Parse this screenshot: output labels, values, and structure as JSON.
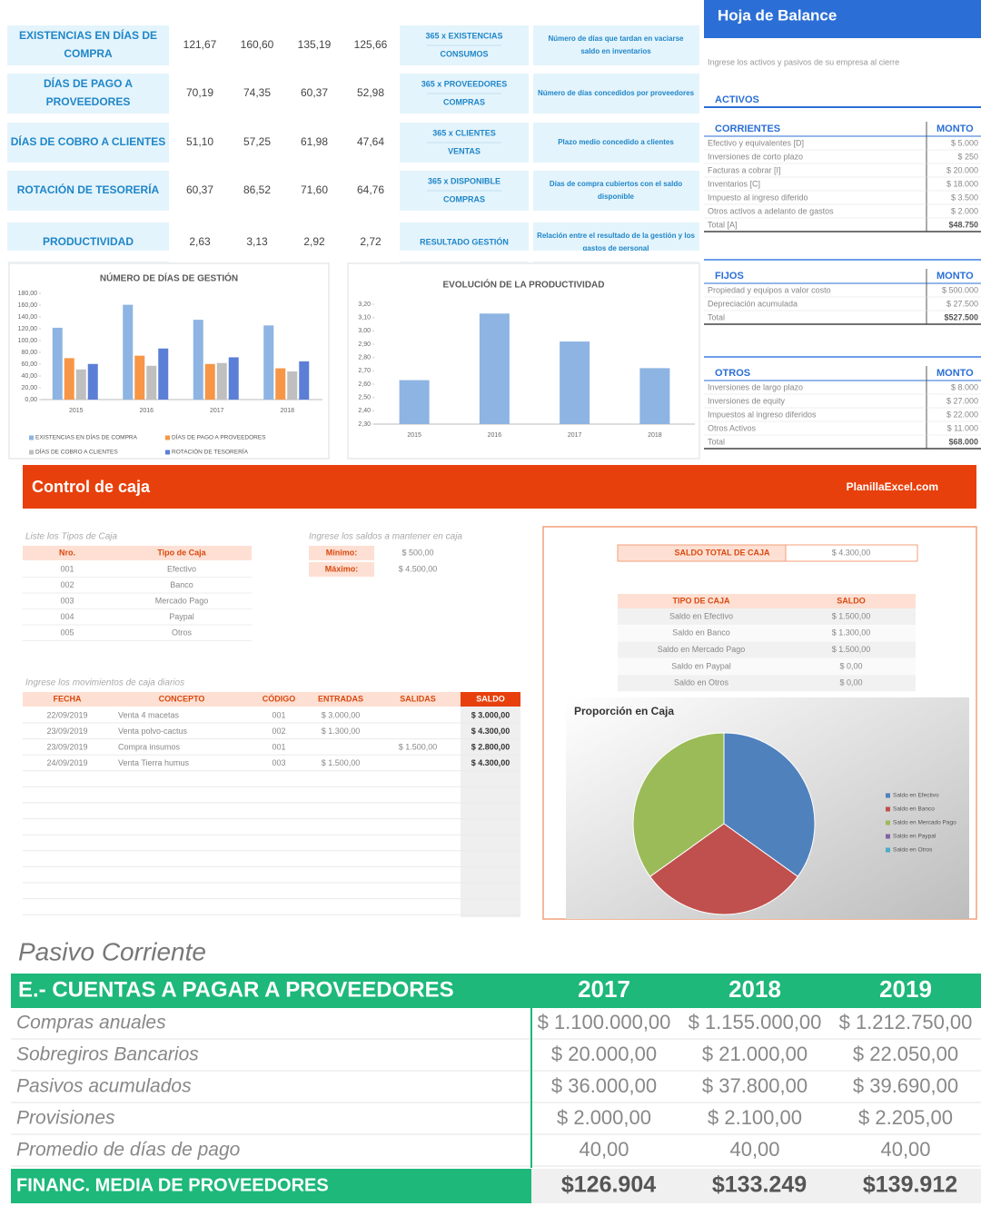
{
  "indicators": {
    "rows": [
      {
        "name": [
          "EXISTENCIAS EN DÍAS DE",
          "COMPRA"
        ],
        "values": [
          "121,67",
          "160,60",
          "135,19",
          "125,66"
        ],
        "formula": [
          "365 x EXISTENCIAS",
          "CONSUMOS"
        ],
        "meaning": [
          "Número de días que tardan en vaciarse",
          "saldo en inventarios"
        ]
      },
      {
        "name": [
          "DÍAS DE PAGO A",
          "PROVEEDORES"
        ],
        "values": [
          "70,19",
          "74,35",
          "60,37",
          "52,98"
        ],
        "formula": [
          "365 x PROVEEDORES",
          "COMPRAS"
        ],
        "meaning": [
          "Número de días concedidos por proveedores"
        ]
      },
      {
        "name": [
          "DÍAS DE COBRO A CLIENTES"
        ],
        "values": [
          "51,10",
          "57,25",
          "61,98",
          "47,64"
        ],
        "formula": [
          "365 x CLIENTES",
          "VENTAS"
        ],
        "meaning": [
          "Plazo medio concedido a clientes"
        ]
      },
      {
        "name": [
          "ROTACIÓN DE TESORERÍA"
        ],
        "values": [
          "60,37",
          "86,52",
          "71,60",
          "64,76"
        ],
        "formula": [
          "365 x DISPONIBLE",
          "COMPRAS"
        ],
        "meaning": [
          "Días de compra cubiertos con el saldo",
          "disponible"
        ]
      },
      {
        "name": [
          "PRODUCTIVIDAD"
        ],
        "values": [
          "2,63",
          "3,13",
          "2,92",
          "2,72"
        ],
        "formula": [
          "RESULTADO GESTIÓN"
        ],
        "meaning": [
          "Relación entre el resultado de la gestión y los",
          "gastos de personal"
        ]
      }
    ]
  },
  "chart_data": [
    {
      "type": "bar",
      "title": "NÚMERO DE DÍAS DE GESTIÓN",
      "categories": [
        "2015",
        "2016",
        "2017",
        "2018"
      ],
      "series": [
        {
          "name": "EXISTENCIAS EN DÍAS DE COMPRA",
          "color": "#8db4e2",
          "values": [
            121.67,
            160.6,
            135.19,
            125.66
          ]
        },
        {
          "name": "DÍAS DE PAGO A PROVEEDORES",
          "color": "#f79646",
          "values": [
            70.19,
            74.35,
            60.37,
            52.98
          ]
        },
        {
          "name": "DÍAS DE COBRO A CLIENTES",
          "color": "#bfbfbf",
          "values": [
            51.1,
            57.25,
            61.98,
            47.64
          ]
        },
        {
          "name": "ROTACIÓN DE TESORERÍA",
          "color": "#5b7fd6",
          "values": [
            60.37,
            86.52,
            71.6,
            64.76
          ]
        }
      ],
      "ylim": [
        0,
        180
      ],
      "yticks": [
        {
          "value": 0,
          "label": "0,00"
        },
        {
          "value": 20,
          "label": "20,00"
        },
        {
          "value": 40,
          "label": "40,00"
        },
        {
          "value": 60,
          "label": "60,00"
        },
        {
          "value": 80,
          "label": "80,00"
        },
        {
          "value": 100,
          "label": "100,00"
        },
        {
          "value": 120,
          "label": "120,00"
        },
        {
          "value": 140,
          "label": "140,00"
        },
        {
          "value": 160,
          "label": "160,00"
        },
        {
          "value": 180,
          "label": "180,00"
        }
      ]
    },
    {
      "type": "bar",
      "title": "EVOLUCIÓN DE LA PRODUCTIVIDAD",
      "categories": [
        "2015",
        "2016",
        "2017",
        "2018"
      ],
      "values": [
        2.63,
        3.13,
        2.92,
        2.72
      ],
      "color": "#8db4e2",
      "ylim": [
        2.3,
        3.2
      ],
      "yticks": [
        {
          "value": 2.3,
          "label": "2,30"
        },
        {
          "value": 2.4,
          "label": "2,40"
        },
        {
          "value": 2.5,
          "label": "2,50"
        },
        {
          "value": 2.6,
          "label": "2,60"
        },
        {
          "value": 2.7,
          "label": "2,70"
        },
        {
          "value": 2.8,
          "label": "2,80"
        },
        {
          "value": 2.9,
          "label": "2,90"
        },
        {
          "value": 3.0,
          "label": "3,00"
        },
        {
          "value": 3.1,
          "label": "3,10"
        },
        {
          "value": 3.2,
          "label": "3,20"
        }
      ]
    },
    {
      "type": "pie",
      "title": "Proporción en Caja",
      "categories": [
        "Saldo en Efectivo",
        "Saldo en Banco",
        "Saldo en Mercado Pago",
        "Saldo en Paypal",
        "Saldo en Otros"
      ],
      "values": [
        1500,
        1300,
        1500,
        0,
        0
      ],
      "colors": [
        "#4f81bd",
        "#c0504d",
        "#9bbb59",
        "#8064a2",
        "#4bacc6"
      ]
    }
  ],
  "balance": {
    "title": "Hoja de Balance",
    "subtitle": "Ingrese los activos y pasivos de su empresa al cierre",
    "heading": "ACTIVOS",
    "sections": [
      {
        "name": "CORRIENTES",
        "amount_header": "MONTO",
        "rows": [
          [
            "Efectivo y equivalentes [D]",
            "$ 5.000"
          ],
          [
            "Inversiones de corto plazo",
            "$ 250"
          ],
          [
            "Facturas a cobrar [I]",
            "$ 20.000"
          ],
          [
            "Inventarios [C]",
            "$ 18.000"
          ],
          [
            "Impuesto al ingreso diferido",
            "$ 3.500"
          ],
          [
            "Otros activos a adelanto de gastos",
            "$ 2.000"
          ],
          [
            "Total [A]",
            "$48.750"
          ]
        ]
      },
      {
        "name": "FIJOS",
        "amount_header": "MONTO",
        "rows": [
          [
            "Propiedad y equipos a valor costo",
            "$ 500.000"
          ],
          [
            "Depreciación acumulada",
            "$ 27.500"
          ],
          [
            "Total",
            "$527.500"
          ]
        ]
      },
      {
        "name": "OTROS",
        "amount_header": "MONTO",
        "rows": [
          [
            "Inversiones de largo plazo",
            "$ 8.000"
          ],
          [
            "Inversiones de equity",
            "$ 27.000"
          ],
          [
            "Impuestos al ingreso diferidos",
            "$ 22.000"
          ],
          [
            "Otros Activos",
            "$ 11.000"
          ],
          [
            "Total",
            "$68.000"
          ]
        ]
      }
    ]
  },
  "cash_control": {
    "title": "Control de caja",
    "brand": "PlanillaExcel.com",
    "types_label": "Liste los Tipos de Caja",
    "types_headers": [
      "Nro.",
      "Tipo de Caja"
    ],
    "types": [
      [
        "001",
        "Efectivo"
      ],
      [
        "002",
        "Banco"
      ],
      [
        "003",
        "Mercado Pago"
      ],
      [
        "004",
        "Paypal"
      ],
      [
        "005",
        "Otros"
      ]
    ],
    "limits_label": "Ingrese los saldos a mantener en caja",
    "limits": [
      [
        "Mínimo:",
        "$ 500,00"
      ],
      [
        "Máximo:",
        "$ 4.500,00"
      ]
    ],
    "total_label": "SALDO TOTAL DE CAJA",
    "total_value": "$ 4.300,00",
    "balance_headers": [
      "TIPO DE CAJA",
      "SALDO"
    ],
    "balances": [
      [
        "Saldo en Efectivo",
        "$ 1.500,00"
      ],
      [
        "Saldo en Banco",
        "$ 1.300,00"
      ],
      [
        "Saldo en Mercado Pago",
        "$ 1.500,00"
      ],
      [
        "Saldo en Paypal",
        "$ 0,00"
      ],
      [
        "Saldo en Otros",
        "$ 0,00"
      ]
    ],
    "moves_label": "Ingrese los movimientos de caja diarios",
    "moves_headers": [
      "FECHA",
      "CONCEPTO",
      "CÓDIGO",
      "ENTRADAS",
      "SALIDAS",
      "SALDO"
    ],
    "moves": [
      [
        "22/09/2019",
        "Venta 4 macetas",
        "001",
        "$ 3.000,00",
        null,
        "$ 3.000,00"
      ],
      [
        "23/09/2019",
        "Venta polvo-cactus",
        "002",
        "$ 1.300,00",
        null,
        "$ 4.300,00"
      ],
      [
        "23/09/2019",
        "Compra insumos",
        "001",
        null,
        "$ 1.500,00",
        "$ 2.800,00"
      ],
      [
        "24/09/2019",
        "Venta Tierra humus",
        "003",
        "$ 1.500,00",
        null,
        "$ 4.300,00"
      ]
    ]
  },
  "payables": {
    "title": "Pasivo Corriente",
    "header": "E.- CUENTAS A PAGAR A PROVEEDORES",
    "years": [
      "2017",
      "2018",
      "2019"
    ],
    "rows": [
      [
        "Compras anuales",
        "$ 1.100.000,00",
        "$ 1.155.000,00",
        "$ 1.212.750,00"
      ],
      [
        "Sobregiros Bancarios",
        "$ 20.000,00",
        "$ 21.000,00",
        "$ 22.050,00"
      ],
      [
        "Pasivos acumulados",
        "$ 36.000,00",
        "$ 37.800,00",
        "$ 39.690,00"
      ],
      [
        "Provisiones",
        "$ 2.000,00",
        "$ 2.100,00",
        "$ 2.205,00"
      ],
      [
        "Promedio de días de pago",
        "40,00",
        "40,00",
        "40,00"
      ]
    ],
    "total": [
      "FINANC. MEDIA DE PROVEEDORES",
      "$126.904",
      "$133.249",
      "$139.912"
    ]
  }
}
